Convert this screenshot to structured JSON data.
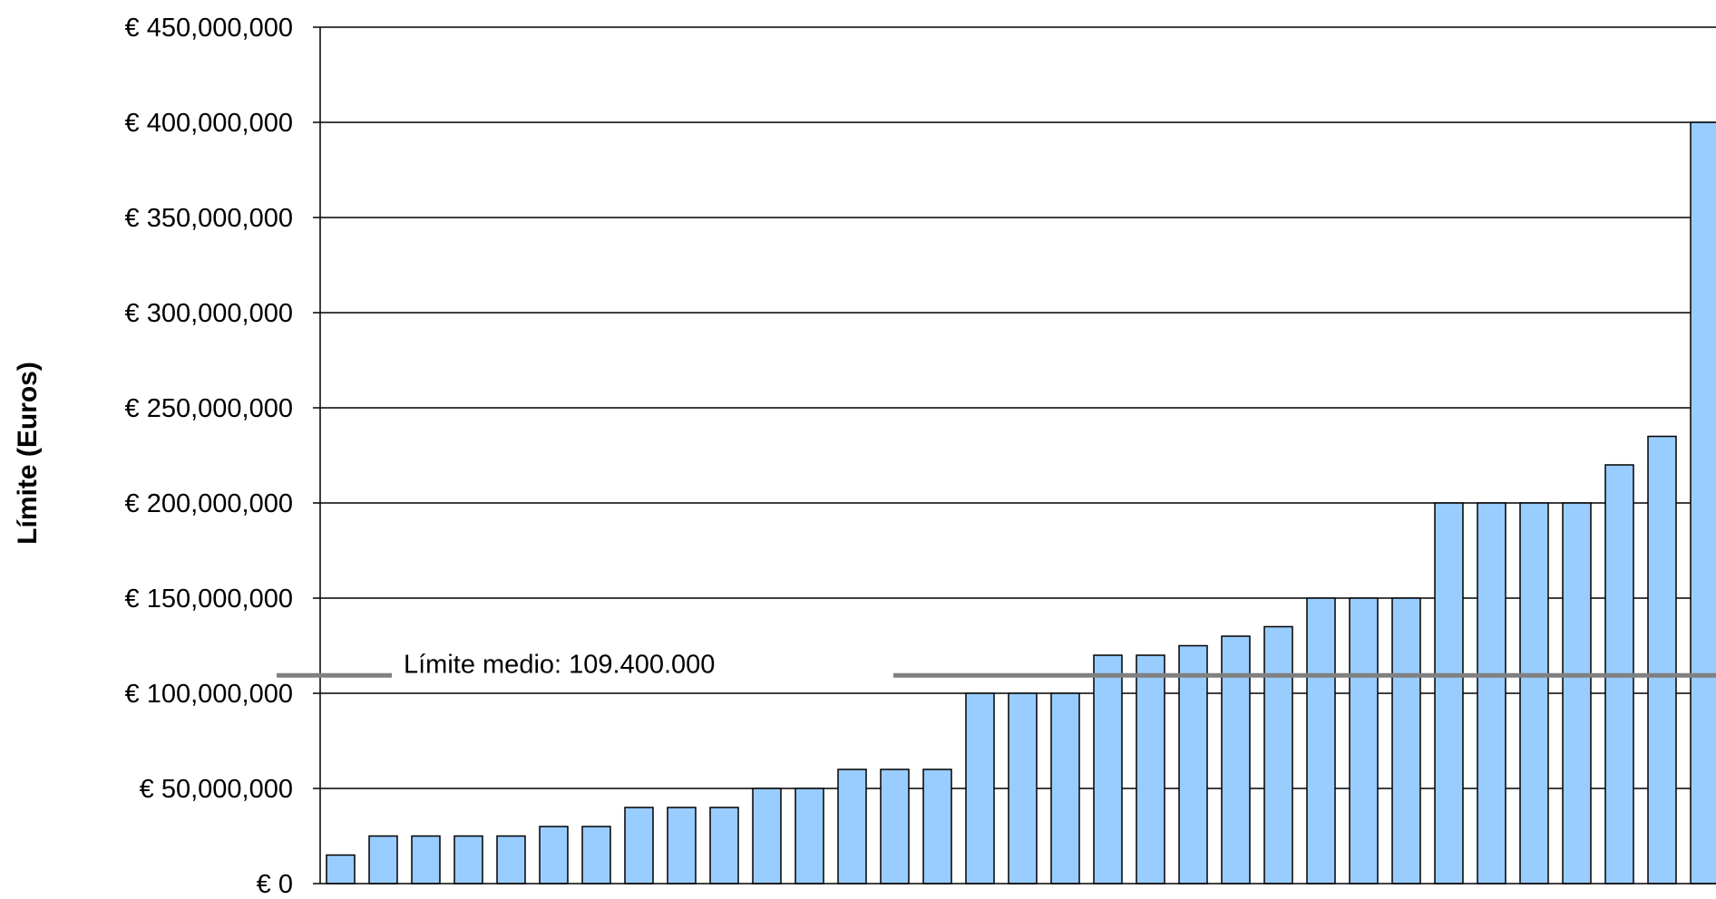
{
  "chart_data": {
    "type": "bar",
    "title": "",
    "xlabel": "",
    "ylabel": "Límite (Euros)",
    "ylim": [
      0,
      450000000
    ],
    "y_ticks": [
      {
        "value": 0,
        "label": "€ 0"
      },
      {
        "value": 50000000,
        "label": "€ 50,000,000"
      },
      {
        "value": 100000000,
        "label": "€ 100,000,000"
      },
      {
        "value": 150000000,
        "label": "€ 150,000,000"
      },
      {
        "value": 200000000,
        "label": "€ 200,000,000"
      },
      {
        "value": 250000000,
        "label": "€ 250,000,000"
      },
      {
        "value": 300000000,
        "label": "€ 300,000,000"
      },
      {
        "value": 350000000,
        "label": "€ 350,000,000"
      },
      {
        "value": 400000000,
        "label": "€ 400,000,000"
      },
      {
        "value": 450000000,
        "label": "€ 450,000,000"
      }
    ],
    "grid": true,
    "values": [
      15000000,
      25000000,
      25000000,
      25000000,
      25000000,
      30000000,
      30000000,
      40000000,
      40000000,
      40000000,
      50000000,
      50000000,
      60000000,
      60000000,
      60000000,
      100000000,
      100000000,
      100000000,
      120000000,
      120000000,
      125000000,
      130000000,
      135000000,
      150000000,
      150000000,
      150000000,
      200000000,
      200000000,
      200000000,
      200000000,
      220000000,
      235000000,
      400000000
    ],
    "bar_color": "#99ccff",
    "bar_edge_color": "#000000",
    "reference_line": {
      "value": 109400000,
      "label": "Límite medio: 109.400.000",
      "color": "#808080"
    }
  }
}
